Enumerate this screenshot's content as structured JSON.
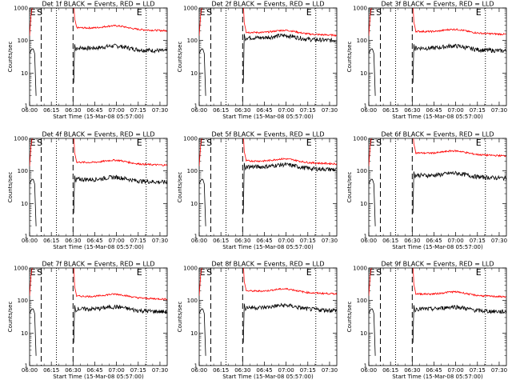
{
  "chart_data": {
    "type": "line",
    "y_scale": "log",
    "ylim": [
      1,
      1000
    ],
    "ytick_labels": [
      "1",
      "10",
      "100",
      "1000"
    ],
    "xlim": [
      "06:00",
      "07:35"
    ],
    "xtick_labels": [
      "06:00",
      "06:15",
      "06:30",
      "06:45",
      "07:00",
      "07:15",
      "07:30"
    ],
    "ylabel": "Counts/sec",
    "xlabel": "Start Time (15-Mar-08 05:57:00)",
    "markers": [
      "E",
      "S",
      "E"
    ],
    "series_colors": {
      "events": "#000000",
      "lld": "#ff0000"
    },
    "panels": [
      {
        "title": "Det 1f BLACK = Events, RED = LLD",
        "events_level": 48,
        "lld_level": 200
      },
      {
        "title": "Det 2f BLACK = Events, RED = LLD",
        "events_level": 100,
        "lld_level": 145
      },
      {
        "title": "Det 3f BLACK = Events, RED = LLD",
        "events_level": 48,
        "lld_level": 155
      },
      {
        "title": "Det 4f BLACK = Events, RED = LLD",
        "events_level": 45,
        "lld_level": 150
      },
      {
        "title": "Det 5f BLACK = Events, RED = LLD",
        "events_level": 110,
        "lld_level": 165
      },
      {
        "title": "Det 6f BLACK = Events, RED = LLD",
        "events_level": 60,
        "lld_level": 290
      },
      {
        "title": "Det 7f BLACK = Events, RED = LLD",
        "events_level": 45,
        "lld_level": 110
      },
      {
        "title": "Det 8f BLACK = Events, RED = LLD",
        "events_level": 50,
        "lld_level": 160
      },
      {
        "title": "Det 9f BLACK = Events, RED = LLD",
        "events_level": 45,
        "lld_level": 130
      }
    ]
  }
}
